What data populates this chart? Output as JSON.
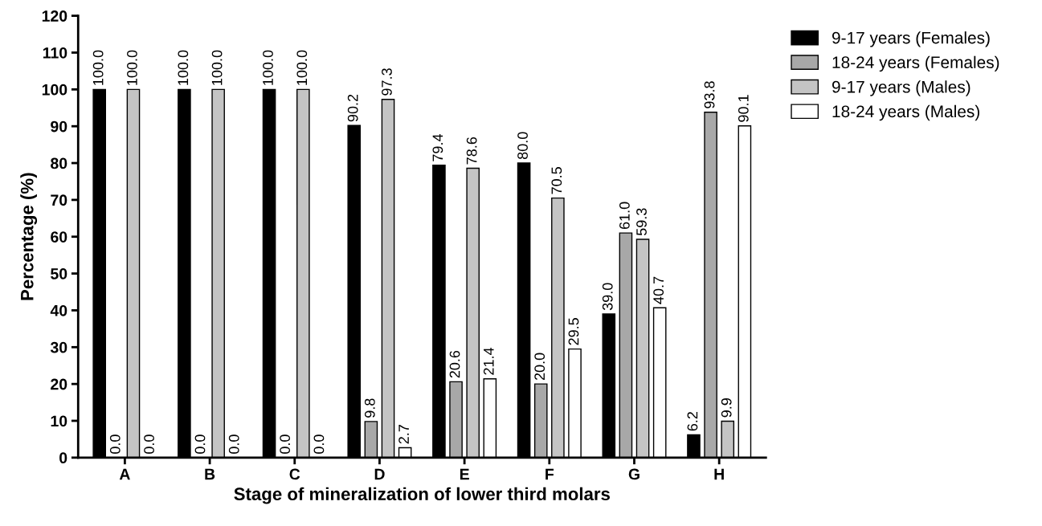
{
  "chart_data": {
    "type": "bar",
    "xlabel": "Stage of mineralization of lower third molars",
    "ylabel": "Percentage (%)",
    "categories": [
      "A",
      "B",
      "C",
      "D",
      "E",
      "F",
      "G",
      "H"
    ],
    "series": [
      {
        "name": "9-17 years (Females)",
        "color": "#000000",
        "values": [
          100.0,
          100.0,
          100.0,
          90.2,
          79.4,
          80.0,
          39.0,
          6.2
        ],
        "value_labels": [
          "100.0",
          "100.0",
          "100.0",
          "90.2",
          "79.4",
          "80.0",
          "39.0",
          "6.2"
        ]
      },
      {
        "name": "18-24 years (Females)",
        "color": "#a8a8a8",
        "values": [
          0.0,
          0.0,
          0.0,
          9.8,
          20.6,
          20.0,
          61.0,
          93.8
        ],
        "value_labels": [
          "0.0",
          "0.0",
          "0.0",
          "9.8",
          "20.6",
          "20.0",
          "61.0",
          "93.8"
        ]
      },
      {
        "name": "9-17 years (Males)",
        "color": "#c4c4c4",
        "values": [
          100.0,
          100.0,
          100.0,
          97.3,
          78.6,
          70.5,
          59.3,
          9.9
        ],
        "value_labels": [
          "100.0",
          "100.0",
          "100.0",
          "97.3",
          "78.6",
          "70.5",
          "59.3",
          "9.9"
        ]
      },
      {
        "name": "18-24 years (Males)",
        "color": "#ffffff",
        "values": [
          0.0,
          0.0,
          0.0,
          2.7,
          21.4,
          29.5,
          40.7,
          90.1
        ],
        "value_labels": [
          "0.0",
          "0.0",
          "0.0",
          "2.7",
          "21.4",
          "29.5",
          "40.7",
          "90.1"
        ]
      }
    ],
    "ylim": [
      0,
      120
    ],
    "yticks": [
      0,
      10,
      20,
      30,
      40,
      50,
      60,
      70,
      80,
      90,
      100,
      110,
      120
    ],
    "grid": false,
    "legend": "top right"
  }
}
